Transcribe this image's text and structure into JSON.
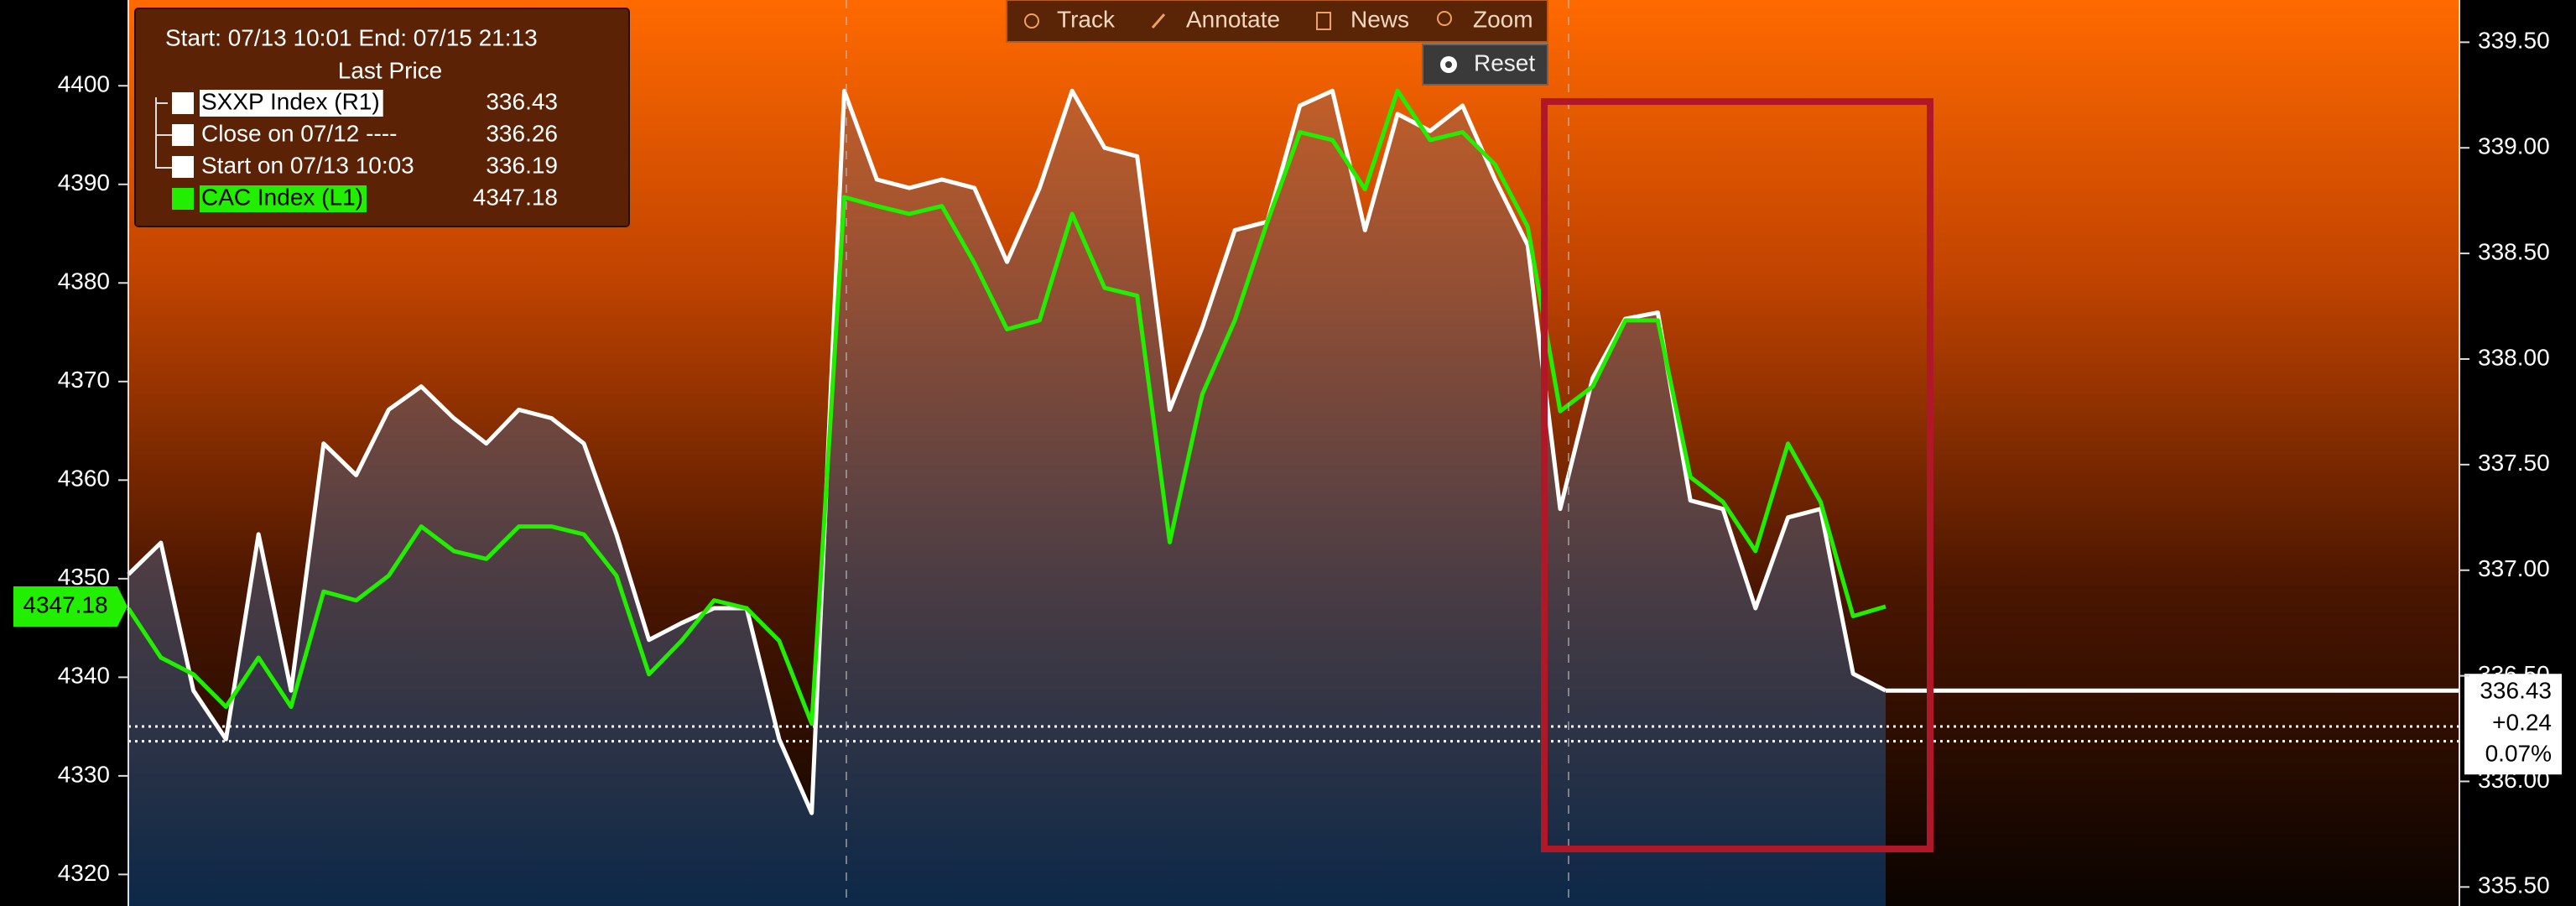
{
  "chart_data": {
    "type": "line",
    "subtitle": "Start: 07/13 10:01 End: 07/15 21:13",
    "legend_title": "Last Price",
    "toolbar": [
      "Track",
      "Annotate",
      "News",
      "Zoom",
      "Reset"
    ],
    "change_labels": [
      "+0.24",
      "0.07%"
    ],
    "ylim": [
      4316.8,
      4408.7
    ],
    "yticks": [
      4320,
      4330,
      4340,
      4350,
      4360,
      4370,
      4380,
      4390,
      4400
    ],
    "y2lim": [
      335.41,
      339.7
    ],
    "y2ticks": [
      {
        "value": 335.5,
        "label": "335.50"
      },
      {
        "value": 336,
        "label": "336.00"
      },
      {
        "value": 336.5,
        "label": "336.50"
      },
      {
        "value": 337,
        "label": "337.00"
      },
      {
        "value": 337.5,
        "label": "337.50"
      },
      {
        "value": 338,
        "label": "338.00"
      },
      {
        "value": 338.5,
        "label": "338.50"
      },
      {
        "value": 339,
        "label": "339.00"
      },
      {
        "value": 339.5,
        "label": "339.50"
      }
    ],
    "reference_lines": [
      {
        "name": "Close on 07/12 ----",
        "value": 336.26,
        "color": "#ffffff",
        "axis": "y2"
      },
      {
        "name": "Start on 07/13 10:03",
        "value": 336.19,
        "color": "#ffffff",
        "axis": "y2"
      }
    ],
    "series": [
      {
        "name": "SXXP Index  (R1)",
        "color": "#ffffff",
        "axis": "y2",
        "values": [
          336.98,
          337.13,
          336.43,
          336.2,
          337.17,
          336.43,
          337.6,
          337.45,
          337.76,
          337.87,
          337.72,
          337.6,
          337.76,
          337.72,
          337.6,
          337.17,
          336.67,
          336.75,
          336.82,
          336.82,
          336.2,
          335.85,
          339.27,
          338.85,
          338.81,
          338.85,
          338.81,
          338.46,
          338.81,
          339.27,
          339.0,
          338.96,
          337.76,
          338.15,
          338.61,
          338.65,
          339.2,
          339.27,
          338.61,
          339.16,
          339.08,
          339.2,
          338.85,
          338.54,
          337.29,
          337.91,
          338.19,
          338.22,
          337.33,
          337.29,
          336.82,
          337.25,
          337.29,
          336.51,
          336.43
        ]
      },
      {
        "name": "CAC Index  (L1)",
        "color": "#22ee00",
        "values": [
          4347.0,
          4342.0,
          4340.3,
          4337.0,
          4342.0,
          4337.0,
          4348.7,
          4347.8,
          4350.3,
          4355.3,
          4352.8,
          4352.0,
          4355.3,
          4355.3,
          4354.5,
          4350.3,
          4340.3,
          4343.7,
          4347.8,
          4347.0,
          4343.7,
          4335.3,
          4388.7,
          4387.8,
          4387.0,
          4387.8,
          4382.0,
          4375.3,
          4376.2,
          4387.0,
          4379.5,
          4378.7,
          4353.7,
          4368.7,
          4376.2,
          4386.2,
          4395.3,
          4394.5,
          4389.5,
          4399.5,
          4394.5,
          4395.3,
          4392.0,
          4385.7,
          4367.0,
          4369.5,
          4376.2,
          4376.2,
          4360.3,
          4357.8,
          4352.8,
          4363.7,
          4357.8,
          4346.2,
          4347.18
        ]
      }
    ]
  }
}
